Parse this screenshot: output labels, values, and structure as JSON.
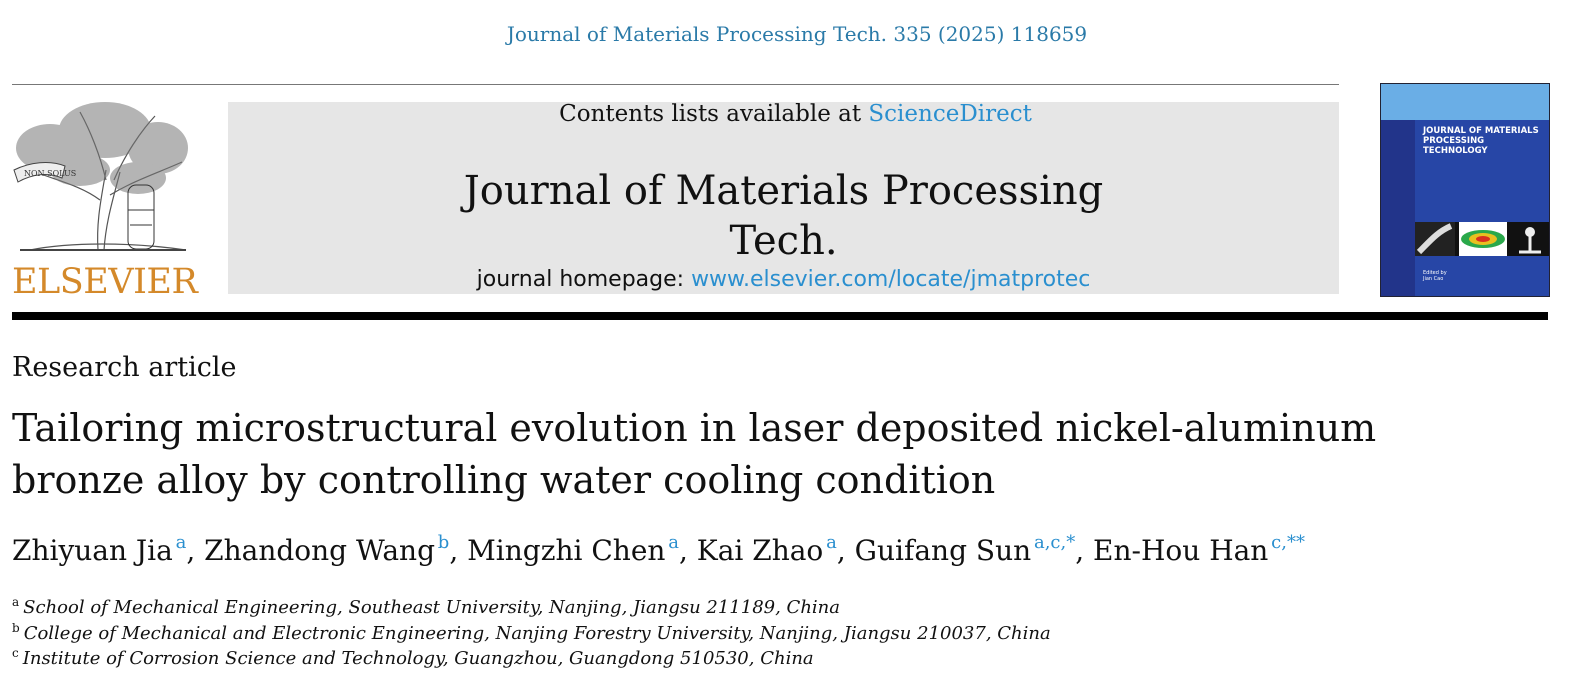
{
  "citation": "Journal of Materials Processing Tech. 335 (2025) 118659",
  "header": {
    "contents_prefix": "Contents lists available at",
    "contents_link": "ScienceDirect",
    "journal_title": "Journal of Materials Processing Tech.",
    "homepage_prefix": "journal homepage:",
    "homepage_url": "www.elsevier.com/locate/jmatprotec",
    "logo_text": "ELSEVIER",
    "logo_banner": "NON SOLUS"
  },
  "cover": {
    "title_line1": "JOURNAL OF MATERIALS",
    "title_line2": "PROCESSING TECHNOLOGY",
    "edited_by": "Edited by",
    "editor": "Jian Cao"
  },
  "article": {
    "type": "Research article",
    "title_line1": "Tailoring microstructural evolution in laser deposited nickel-aluminum",
    "title_line2": "bronze alloy by controlling water cooling condition"
  },
  "authors": [
    {
      "name": "Zhiyuan Jia",
      "marks": "a"
    },
    {
      "name": "Zhandong Wang",
      "marks": "b"
    },
    {
      "name": "Mingzhi Chen",
      "marks": "a"
    },
    {
      "name": "Kai Zhao",
      "marks": "a"
    },
    {
      "name": "Guifang Sun",
      "marks": "a,c,*"
    },
    {
      "name": "En-Hou Han",
      "marks": "c,**"
    }
  ],
  "affiliations": [
    {
      "label": "a",
      "text": "School of Mechanical Engineering, Southeast University, Nanjing, Jiangsu 211189, China"
    },
    {
      "label": "b",
      "text": "College of Mechanical and Electronic Engineering, Nanjing Forestry University, Nanjing, Jiangsu 210037, China"
    },
    {
      "label": "c",
      "text": "Institute of Corrosion Science and Technology, Guangzhou, Guangdong 510530, China"
    }
  ],
  "colors": {
    "link": "#2a8fcf",
    "logo": "#d4892a",
    "cover": "#2746a6"
  }
}
